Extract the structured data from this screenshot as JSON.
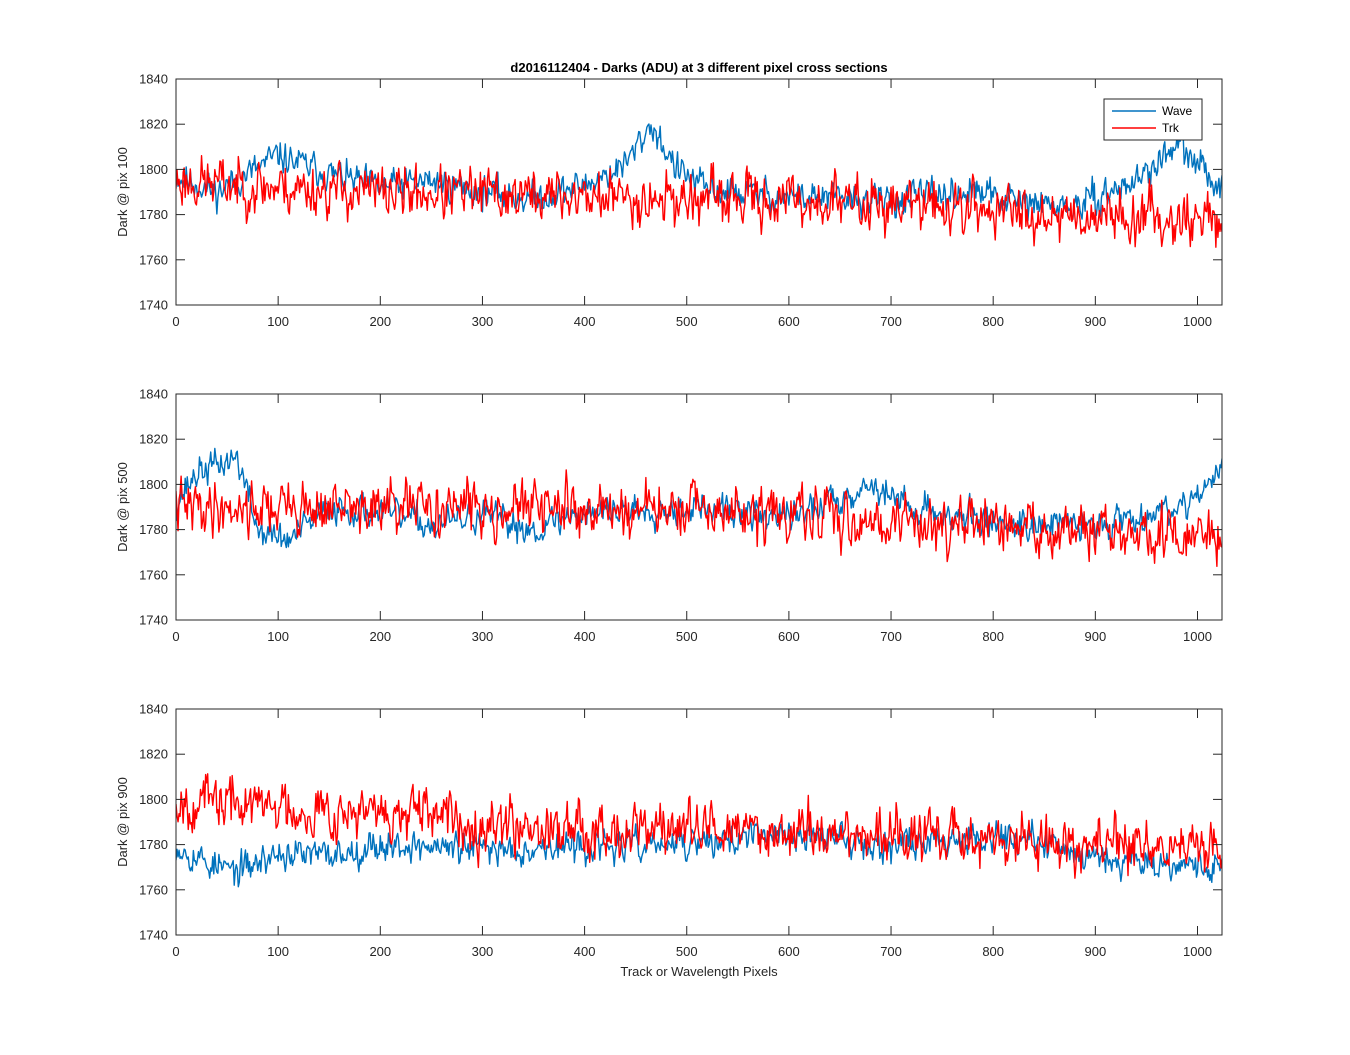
{
  "figure": {
    "title": "d2016112404 - Darks (ADU) at 3 different pixel cross sections",
    "xlabel": "Track or Wavelength Pixels"
  },
  "colors": {
    "wave": "#0072BD",
    "trk": "#FF0000",
    "axis": "#262626"
  },
  "chart_data": [
    {
      "type": "line",
      "ylabel": "Dark @ pix 100",
      "xlim": [
        0,
        1024
      ],
      "ylim": [
        1740,
        1840
      ],
      "xticks": [
        0,
        100,
        200,
        300,
        400,
        500,
        600,
        700,
        800,
        900,
        1000
      ],
      "yticks": [
        1740,
        1760,
        1780,
        1800,
        1820,
        1840
      ],
      "grid": false,
      "legend": {
        "entries": [
          "Wave",
          "Trk"
        ],
        "placement": "top-right"
      },
      "series": [
        {
          "name": "Wave",
          "color": "#0072BD",
          "noise": 6,
          "seed": 11,
          "trend_x": [
            0,
            40,
            100,
            150,
            200,
            250,
            300,
            350,
            400,
            440,
            465,
            490,
            520,
            600,
            700,
            780,
            830,
            880,
            940,
            980,
            1024
          ],
          "trend_y": [
            1797,
            1790,
            1806,
            1798,
            1792,
            1795,
            1790,
            1787,
            1793,
            1802,
            1820,
            1800,
            1791,
            1788,
            1786,
            1790,
            1785,
            1783,
            1795,
            1810,
            1792
          ]
        },
        {
          "name": "Trk",
          "color": "#FF0000",
          "noise": 10,
          "seed": 23,
          "trend_x": [
            0,
            100,
            200,
            300,
            400,
            500,
            600,
            700,
            800,
            900,
            1024
          ],
          "trend_y": [
            1795,
            1792,
            1790,
            1789,
            1788,
            1787,
            1786,
            1785,
            1782,
            1780,
            1778
          ]
        }
      ]
    },
    {
      "type": "line",
      "ylabel": "Dark @ pix 500",
      "xlim": [
        0,
        1024
      ],
      "ylim": [
        1740,
        1840
      ],
      "xticks": [
        0,
        100,
        200,
        300,
        400,
        500,
        600,
        700,
        800,
        900,
        1000
      ],
      "yticks": [
        1740,
        1760,
        1780,
        1800,
        1820,
        1840
      ],
      "grid": false,
      "series": [
        {
          "name": "Wave",
          "color": "#0072BD",
          "noise": 6,
          "seed": 37,
          "trend_x": [
            0,
            20,
            60,
            80,
            110,
            150,
            200,
            250,
            300,
            350,
            400,
            500,
            600,
            680,
            720,
            800,
            900,
            980,
            1024
          ],
          "trend_y": [
            1792,
            1805,
            1812,
            1780,
            1775,
            1790,
            1788,
            1782,
            1786,
            1780,
            1788,
            1790,
            1785,
            1800,
            1790,
            1783,
            1782,
            1790,
            1805
          ]
        },
        {
          "name": "Trk",
          "color": "#FF0000",
          "noise": 10,
          "seed": 41,
          "trend_x": [
            0,
            100,
            200,
            300,
            400,
            500,
            600,
            700,
            800,
            900,
            1024
          ],
          "trend_y": [
            1790,
            1790,
            1789,
            1790,
            1789,
            1788,
            1786,
            1784,
            1781,
            1778,
            1776
          ]
        }
      ]
    },
    {
      "type": "line",
      "ylabel": "Dark @ pix 900",
      "xlim": [
        0,
        1024
      ],
      "ylim": [
        1740,
        1840
      ],
      "xticks": [
        0,
        100,
        200,
        300,
        400,
        500,
        600,
        700,
        800,
        900,
        1000
      ],
      "yticks": [
        1740,
        1760,
        1780,
        1800,
        1820,
        1840
      ],
      "grid": false,
      "series": [
        {
          "name": "Wave",
          "color": "#0072BD",
          "noise": 6,
          "seed": 53,
          "trend_x": [
            0,
            30,
            60,
            100,
            150,
            200,
            300,
            400,
            500,
            600,
            700,
            800,
            900,
            1024
          ],
          "trend_y": [
            1780,
            1772,
            1768,
            1776,
            1775,
            1780,
            1778,
            1779,
            1780,
            1785,
            1780,
            1785,
            1775,
            1770
          ]
        },
        {
          "name": "Trk",
          "color": "#FF0000",
          "noise": 10,
          "seed": 67,
          "trend_x": [
            0,
            100,
            200,
            300,
            400,
            500,
            600,
            700,
            800,
            900,
            1024
          ],
          "trend_y": [
            1800,
            1797,
            1793,
            1790,
            1788,
            1787,
            1786,
            1784,
            1782,
            1780,
            1778
          ]
        }
      ]
    }
  ]
}
